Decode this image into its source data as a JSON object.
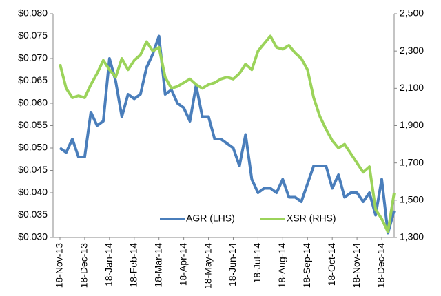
{
  "chart_data": {
    "type": "line",
    "categories": [
      "18-Nov-13",
      null,
      null,
      null,
      "18-Dec-13",
      null,
      null,
      null,
      "18-Jan-14",
      null,
      null,
      null,
      "18-Feb-14",
      null,
      null,
      null,
      "18-Mar-14",
      null,
      null,
      null,
      "18-Apr-14",
      null,
      null,
      null,
      "18-May-14",
      null,
      null,
      null,
      "18-Jun-14",
      null,
      null,
      null,
      "18-Jul-14",
      null,
      null,
      null,
      "18-Aug-14",
      null,
      null,
      null,
      "18-Sep-14",
      null,
      null,
      null,
      "18-Oct-14",
      null,
      null,
      null,
      "18-Nov-14",
      null,
      null,
      null,
      "18-Dec-14",
      null,
      null
    ],
    "series": [
      {
        "name": "AGR (LHS)",
        "color": "#4a7ebb",
        "axis": "y",
        "values": [
          0.05,
          0.049,
          0.052,
          0.048,
          0.048,
          0.058,
          0.055,
          0.056,
          0.07,
          0.065,
          0.057,
          0.062,
          0.061,
          0.062,
          0.068,
          0.071,
          0.075,
          0.062,
          0.063,
          0.06,
          0.059,
          0.056,
          0.064,
          0.057,
          0.057,
          0.052,
          0.052,
          0.051,
          0.05,
          0.046,
          0.053,
          0.043,
          0.04,
          0.041,
          0.041,
          0.04,
          0.043,
          0.039,
          0.039,
          0.038,
          0.042,
          0.046,
          0.046,
          0.046,
          0.041,
          0.044,
          0.039,
          0.04,
          0.04,
          0.038,
          0.04,
          0.035,
          0.043,
          0.031,
          0.036
        ]
      },
      {
        "name": "XSR  (RHS)",
        "color": "#9bd35a",
        "axis": "y2",
        "values": [
          2230,
          2100,
          2050,
          2060,
          2050,
          2120,
          2180,
          2250,
          2200,
          2160,
          2260,
          2200,
          2250,
          2280,
          2350,
          2300,
          2320,
          2160,
          2100,
          2110,
          2130,
          2150,
          2120,
          2100,
          2120,
          2130,
          2150,
          2160,
          2150,
          2180,
          2230,
          2200,
          2300,
          2340,
          2380,
          2320,
          2310,
          2330,
          2290,
          2260,
          2200,
          2050,
          1950,
          1880,
          1820,
          1780,
          1800,
          1750,
          1700,
          1650,
          1680,
          1450,
          1400,
          1330,
          1540
        ]
      }
    ],
    "ylim": [
      0.03,
      0.08
    ],
    "yticks": [
      {
        "value": 0.03,
        "label": "$0.030"
      },
      {
        "value": 0.035,
        "label": "$0.035"
      },
      {
        "value": 0.04,
        "label": "$0.040"
      },
      {
        "value": 0.045,
        "label": "$0.045"
      },
      {
        "value": 0.05,
        "label": "$0.050"
      },
      {
        "value": 0.055,
        "label": "$0.055"
      },
      {
        "value": 0.06,
        "label": "$0.060"
      },
      {
        "value": 0.065,
        "label": "$0.065"
      },
      {
        "value": 0.07,
        "label": "$0.070"
      },
      {
        "value": 0.075,
        "label": "$0.075"
      },
      {
        "value": 0.08,
        "label": "$0.080"
      }
    ],
    "y2lim": [
      1300,
      2500
    ],
    "y2ticks": [
      {
        "value": 1300,
        "label": "1,300"
      },
      {
        "value": 1500,
        "label": "1,500"
      },
      {
        "value": 1700,
        "label": "1,700"
      },
      {
        "value": 1900,
        "label": "1,900"
      },
      {
        "value": 2100,
        "label": "2,100"
      },
      {
        "value": 2300,
        "label": "2,300"
      },
      {
        "value": 2500,
        "label": "2,500"
      }
    ],
    "legend": "bottom"
  }
}
